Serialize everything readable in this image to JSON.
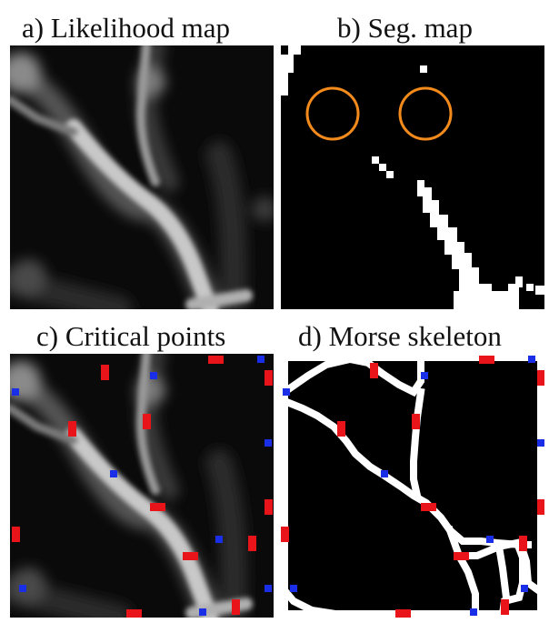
{
  "figure": {
    "panels": [
      {
        "id": "a",
        "title": "a) Likelihood map"
      },
      {
        "id": "b",
        "title": "b) Seg. map"
      },
      {
        "id": "c",
        "title": "c) Critical points"
      },
      {
        "id": "d",
        "title": "d) Morse skeleton"
      }
    ]
  },
  "colors": {
    "background": "#000000",
    "foreground": "#ffffff",
    "orange_circle": "#f28a1c",
    "red_point": "#e8141a",
    "blue_point": "#1a2ee8"
  }
}
